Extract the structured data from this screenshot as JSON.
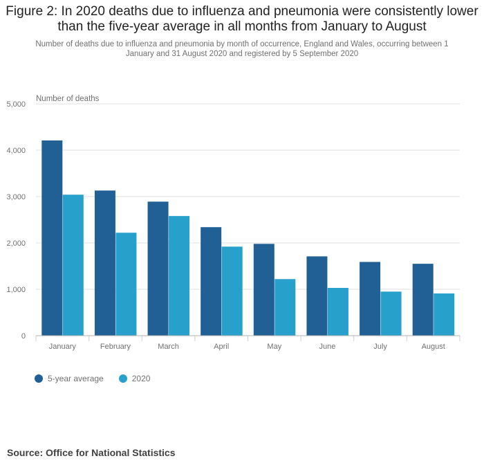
{
  "header": {
    "title": "Figure 2: In 2020 deaths due to influenza and pneumonia were consistently lower than the five-year average in all months from January to August",
    "subtitle": "Number of deaths due to influenza and pneumonia by month of occurrence, England and Wales, occurring between 1 January and 31 August 2020 and registered by 5 September 2020"
  },
  "footer": {
    "source": "Source: Office for National Statistics"
  },
  "chart_data": {
    "type": "bar",
    "title": "Figure 2: In 2020 deaths due to influenza and pneumonia were consistently lower than the five-year average in all months from January to August",
    "subtitle": "Number of deaths due to influenza and pneumonia by month of occurrence, England and Wales, occurring between 1 January and 31 August 2020 and registered by 5 September 2020",
    "ylabel": "Number of deaths",
    "xlabel": "",
    "ylim": [
      0,
      5000
    ],
    "yticks": [
      0,
      1000,
      2000,
      3000,
      4000,
      5000
    ],
    "ytick_labels": [
      "0",
      "1,000",
      "2,000",
      "3,000",
      "4,000",
      "5,000"
    ],
    "categories": [
      "January",
      "February",
      "March",
      "April",
      "May",
      "June",
      "July",
      "August"
    ],
    "series": [
      {
        "name": "5-year average",
        "color": "#206095",
        "values": [
          4210,
          3130,
          2890,
          2340,
          1980,
          1710,
          1590,
          1550
        ]
      },
      {
        "name": "2020",
        "color": "#27a0cc",
        "values": [
          3040,
          2220,
          2580,
          1920,
          1220,
          1030,
          950,
          910
        ]
      }
    ],
    "grid": true,
    "legend": "bottom-left"
  }
}
